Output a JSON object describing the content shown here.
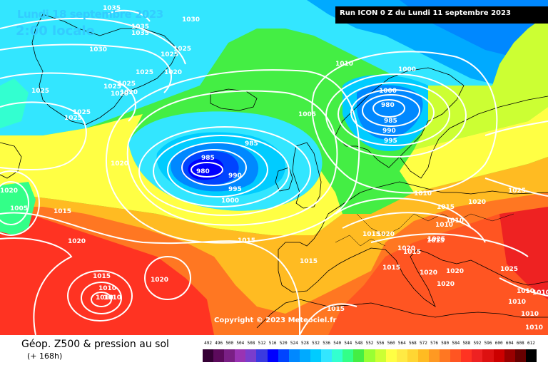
{
  "header": {
    "valid_date": "Lundi 18 septembre 2023",
    "local_time": "2:00 locale",
    "run_info": "Run ICON 0 Z du Lundi 11 septembre 2023"
  },
  "copyright": "Copyright © 2023 Meteociel.fr",
  "footer": {
    "product_title": "Géop. Z500 & pression au sol",
    "lead_time": "(+ 168h)"
  },
  "legend": {
    "values": [
      "492",
      "496",
      "500",
      "504",
      "508",
      "512",
      "516",
      "520",
      "524",
      "528",
      "532",
      "536",
      "540",
      "544",
      "548",
      "552",
      "556",
      "560",
      "564",
      "568",
      "572",
      "576",
      "580",
      "584",
      "588",
      "592",
      "596",
      "600",
      "604",
      "608",
      "612"
    ],
    "colors": [
      "#350035",
      "#5c0a5c",
      "#7a1f85",
      "#9933b3",
      "#7a3dcc",
      "#3a3ae0",
      "#0000ff",
      "#0044ff",
      "#0088ff",
      "#00aaff",
      "#00ccff",
      "#33e6ff",
      "#33ffd0",
      "#33ff88",
      "#44ee44",
      "#99ff33",
      "#ccff33",
      "#ffff44",
      "#ffea44",
      "#ffd633",
      "#ffbb22",
      "#ff9922",
      "#ff7722",
      "#ff5522",
      "#ff3322",
      "#ee2222",
      "#dd1111",
      "#cc0000",
      "#990000",
      "#660000",
      "#000000"
    ]
  },
  "isobars": {
    "labels": [
      "1035",
      "1035",
      "1035",
      "1030",
      "1030",
      "1025",
      "1025",
      "1020",
      "1025",
      "1025",
      "1020",
      "1025",
      "1020",
      "1025",
      "1025",
      "1025",
      "1020",
      "1010",
      "1000",
      "1005",
      "1000",
      "985",
      "985",
      "980",
      "990",
      "995",
      "1000",
      "995",
      "990",
      "985",
      "980",
      "1010",
      "1005",
      "1015",
      "1020",
      "1015",
      "1015",
      "1010",
      "1015",
      "1020",
      "1010",
      "1010",
      "1020",
      "1025",
      "1015",
      "1015",
      "1020",
      "1015",
      "1010",
      "1010",
      "1015",
      "1020",
      "1015",
      "1020",
      "1020",
      "1025",
      "1020",
      "1010",
      "1010",
      "1020",
      "1025",
      "1010",
      "1010",
      "1010",
      "1015",
      "1015",
      "1005"
    ]
  }
}
